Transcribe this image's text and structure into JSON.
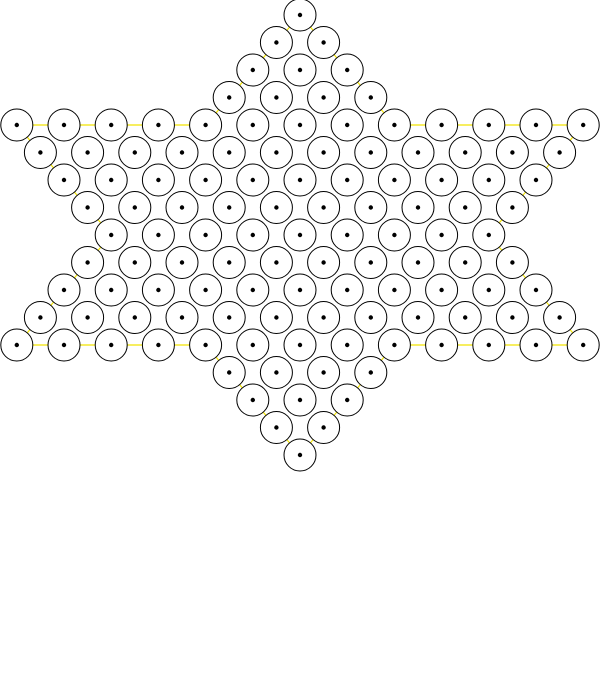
{
  "board": {
    "type": "chinese-checkers",
    "shape": "six-pointed-star",
    "rows": [
      1,
      2,
      3,
      4,
      13,
      12,
      11,
      10,
      9,
      10,
      11,
      12,
      13,
      4,
      3,
      2,
      1
    ],
    "hole_count": 121,
    "pieces": [],
    "colors": {
      "background": "#ffffff",
      "hole_stroke": "#000000",
      "hole_center": "#000000",
      "outline": "#f2e400"
    }
  }
}
